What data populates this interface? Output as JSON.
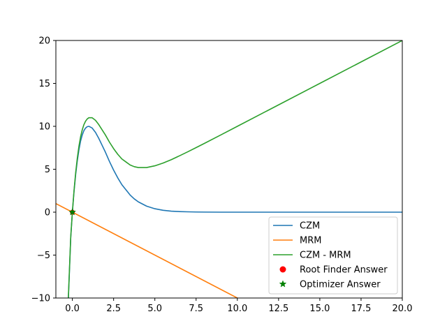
{
  "chart_data": {
    "type": "line",
    "title": "",
    "xlabel": "",
    "ylabel": "",
    "xlim": [
      -1,
      20
    ],
    "ylim": [
      -10,
      20
    ],
    "grid": false,
    "legend_position": "lower-right",
    "x_ticks": [
      0.0,
      2.5,
      5.0,
      7.5,
      10.0,
      12.5,
      15.0,
      17.5,
      20.0
    ],
    "x_tick_labels": [
      "0.0",
      "2.5",
      "5.0",
      "7.5",
      "10.0",
      "12.5",
      "15.0",
      "17.5",
      "20.0"
    ],
    "y_ticks": [
      -10,
      -5,
      0,
      5,
      10,
      15,
      20
    ],
    "y_tick_labels": [
      "−10",
      "−5",
      "0",
      "5",
      "10",
      "15",
      "20"
    ],
    "series": [
      {
        "name": "CZM",
        "color": "#1f77b4",
        "x": [
          -0.25,
          -0.1,
          0,
          0.1,
          0.2,
          0.3,
          0.4,
          0.5,
          0.6,
          0.7,
          0.8,
          0.9,
          1.0,
          1.2,
          1.4,
          1.6,
          1.8,
          2.0,
          2.25,
          2.5,
          2.75,
          3.0,
          3.25,
          3.5,
          3.75,
          4.0,
          4.5,
          5.0,
          5.5,
          6.0,
          6.5,
          7.0,
          7.5,
          8.0,
          9.0,
          10.0,
          12.5,
          15.0,
          17.5,
          20.0
        ],
        "y": [
          -10.5,
          -3.0,
          0.0,
          2.4,
          4.4,
          6.0,
          7.3,
          8.3,
          9.0,
          9.5,
          9.8,
          9.96,
          10.0,
          9.8,
          9.3,
          8.6,
          7.8,
          7.0,
          5.9,
          4.9,
          4.0,
          3.2,
          2.6,
          2.0,
          1.55,
          1.2,
          0.7,
          0.4,
          0.22,
          0.12,
          0.07,
          0.04,
          0.02,
          0.01,
          0.0,
          0.0,
          0.0,
          0.0,
          0.0,
          0.0
        ]
      },
      {
        "name": "MRM",
        "color": "#ff7f0e",
        "x": [
          -1,
          10
        ],
        "y": [
          1,
          -10
        ]
      },
      {
        "name": "CZM - MRM",
        "color": "#2ca02c",
        "x": [
          -0.25,
          -0.1,
          0,
          0.1,
          0.2,
          0.3,
          0.4,
          0.5,
          0.6,
          0.7,
          0.8,
          0.9,
          1.0,
          1.2,
          1.4,
          1.6,
          1.8,
          2.0,
          2.25,
          2.5,
          2.75,
          3.0,
          3.25,
          3.5,
          3.75,
          4.0,
          4.5,
          5.0,
          5.5,
          6.0,
          6.5,
          7.0,
          7.5,
          8.0,
          9.0,
          10.0,
          12.5,
          15.0,
          17.5,
          20.0
        ],
        "y": [
          -10.25,
          -2.9,
          0.0,
          2.5,
          4.6,
          6.3,
          7.7,
          8.8,
          9.6,
          10.2,
          10.6,
          10.86,
          11.0,
          11.0,
          10.7,
          10.2,
          9.6,
          9.0,
          8.15,
          7.4,
          6.75,
          6.2,
          5.85,
          5.5,
          5.3,
          5.2,
          5.2,
          5.4,
          5.72,
          6.12,
          6.57,
          7.04,
          7.52,
          8.01,
          9.0,
          10.0,
          12.5,
          15.0,
          17.5,
          20.0
        ]
      },
      {
        "name": "Root Finder Answer",
        "color": "#ff0000",
        "marker": "circle",
        "x": [
          0.0
        ],
        "y": [
          0.0
        ]
      },
      {
        "name": "Optimizer Answer",
        "color": "#008000",
        "marker": "star",
        "x": [
          0.0
        ],
        "y": [
          0.0
        ]
      }
    ]
  }
}
